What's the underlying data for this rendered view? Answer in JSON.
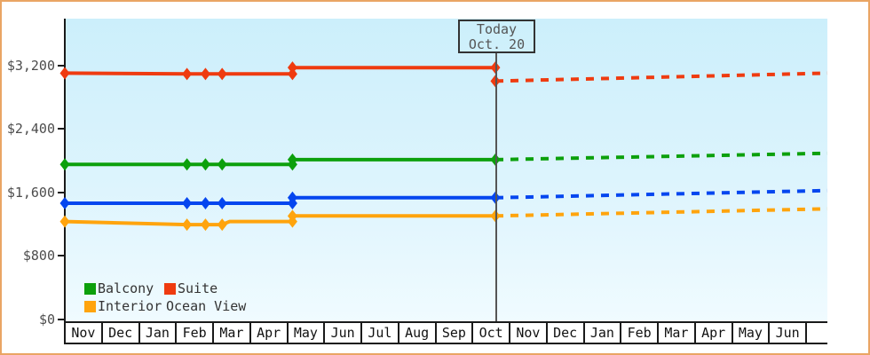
{
  "chart_data": {
    "type": "line",
    "y_axis": {
      "tick_labels": [
        "$0",
        "$800",
        "$1,600",
        "$2,400",
        "$3,200"
      ],
      "tick_values": [
        0,
        800,
        1600,
        2400,
        3200
      ],
      "range": [
        0,
        3790
      ],
      "grid": false
    },
    "x_axis": {
      "month_labels": [
        "Nov",
        "Dec",
        "Jan",
        "Feb",
        "Mar",
        "Apr",
        "May",
        "Jun",
        "Jul",
        "Aug",
        "Sep",
        "Oct",
        "Nov",
        "Dec",
        "Jan",
        "Feb",
        "Mar",
        "Apr",
        "May",
        "Jun"
      ]
    },
    "today": {
      "line1": "Today",
      "line2": "Oct. 20",
      "month_offset": 11.63
    },
    "series": [
      {
        "name": "Suite",
        "color": "#ef3b10",
        "history": [
          {
            "m": 0.0,
            "price": 3100
          },
          {
            "m": 3.3,
            "price": 3090
          },
          {
            "m": 3.8,
            "price": 3090
          },
          {
            "m": 4.25,
            "price": 3090
          },
          {
            "m": 6.15,
            "price": 3090
          },
          {
            "m": 6.15,
            "price": 3170
          },
          {
            "m": 11.63,
            "price": 3170
          }
        ],
        "forecast": [
          {
            "m": 11.63,
            "price": 3000
          },
          {
            "m": 20.6,
            "price": 3100
          }
        ],
        "forecast_start_marker": true
      },
      {
        "name": "Balcony",
        "color": "#0ca00c",
        "history": [
          {
            "m": 0.0,
            "price": 1950
          },
          {
            "m": 3.3,
            "price": 1950
          },
          {
            "m": 3.8,
            "price": 1950
          },
          {
            "m": 4.25,
            "price": 1950
          },
          {
            "m": 6.15,
            "price": 1950
          },
          {
            "m": 6.15,
            "price": 2010
          },
          {
            "m": 11.63,
            "price": 2010
          }
        ],
        "forecast": [
          {
            "m": 11.63,
            "price": 2010
          },
          {
            "m": 20.6,
            "price": 2090
          }
        ],
        "forecast_start_marker": false
      },
      {
        "name": "Ocean View",
        "color": "#0546ef",
        "history": [
          {
            "m": 0.0,
            "price": 1460
          },
          {
            "m": 3.3,
            "price": 1460
          },
          {
            "m": 3.8,
            "price": 1460
          },
          {
            "m": 4.25,
            "price": 1460
          },
          {
            "m": 6.15,
            "price": 1460
          },
          {
            "m": 6.15,
            "price": 1530
          },
          {
            "m": 11.63,
            "price": 1530
          }
        ],
        "forecast": [
          {
            "m": 11.63,
            "price": 1530
          },
          {
            "m": 20.6,
            "price": 1620
          }
        ],
        "forecast_start_marker": false
      },
      {
        "name": "Interior",
        "color": "#ffa40d",
        "history": [
          {
            "m": 0.0,
            "price": 1230
          },
          {
            "m": 3.3,
            "price": 1190
          },
          {
            "m": 3.8,
            "price": 1190
          },
          {
            "m": 4.25,
            "price": 1190
          },
          {
            "m": 4.45,
            "price": 1230,
            "marker": false
          },
          {
            "m": 6.15,
            "price": 1230
          },
          {
            "m": 6.15,
            "price": 1300
          },
          {
            "m": 11.63,
            "price": 1300
          }
        ],
        "forecast": [
          {
            "m": 11.63,
            "price": 1300
          },
          {
            "m": 20.6,
            "price": 1390
          }
        ],
        "forecast_start_marker": false
      }
    ],
    "legend": {
      "position": "bottom-left-inside",
      "items": [
        {
          "label": "Balcony",
          "color": "#0ca00c"
        },
        {
          "label": "Suite",
          "color": "#ef3b10"
        },
        {
          "label": "Interior",
          "color": "#ffa40d"
        },
        {
          "label": "Ocean View",
          "color": "#0546ef"
        }
      ]
    }
  },
  "colors": {
    "outer_border": "#eaa564",
    "plot_bg_top": "#cceffb",
    "plot_bg_bottom": "#f0fbff",
    "axis": "#1a1a1a",
    "today_line": "#555555",
    "y_label_text": "#4d4d4d",
    "month_text": "#111111",
    "legend_text": "#333333",
    "today_text": "#555555"
  }
}
